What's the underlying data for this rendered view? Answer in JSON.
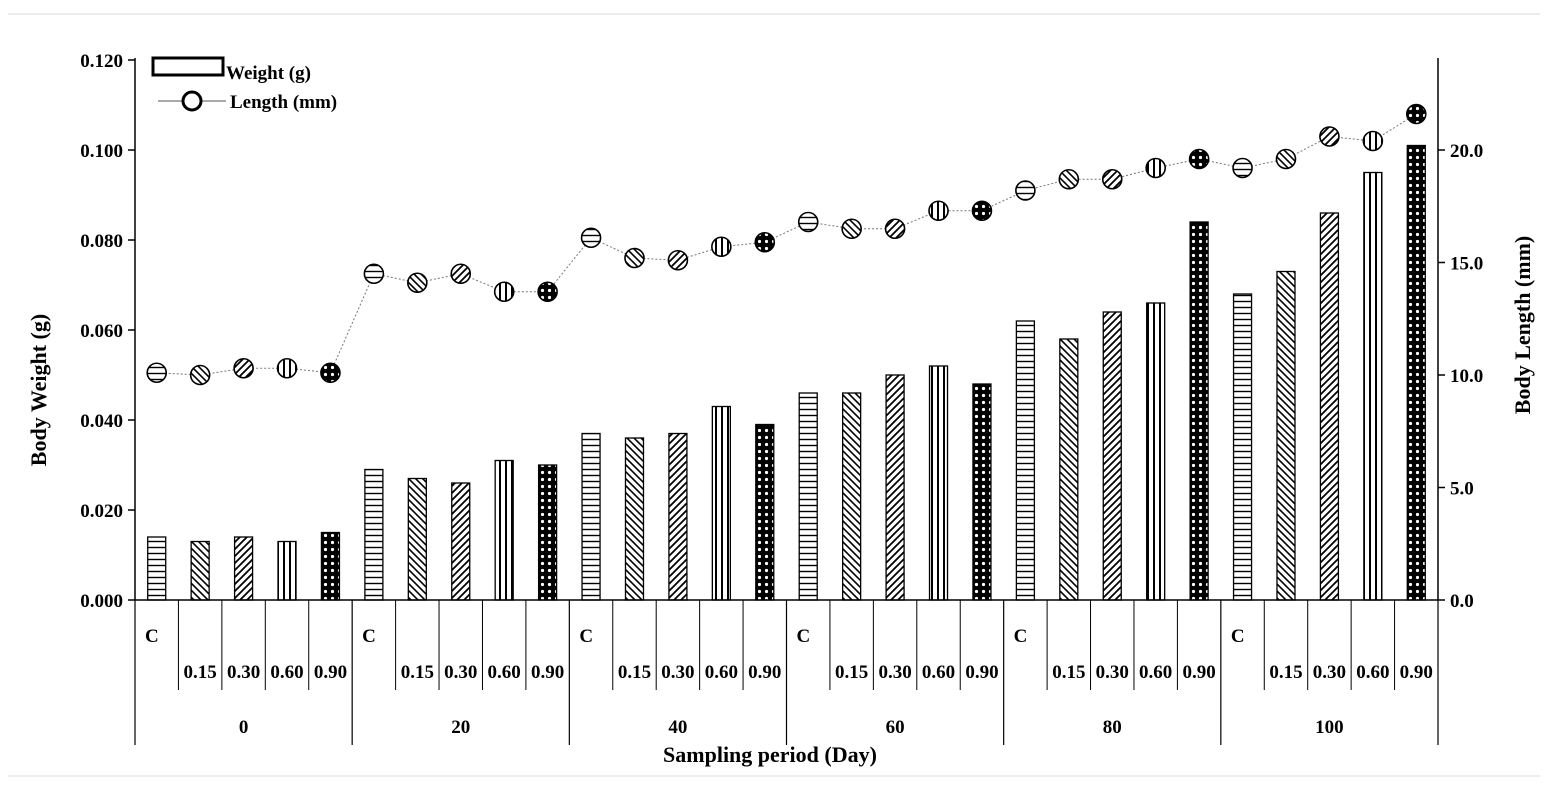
{
  "chart_data": {
    "type": "bar",
    "subtype": "grouped bar with secondary-axis line",
    "xlabel": "Sampling period  (Day)",
    "ylabel": "Body  Weight (g)",
    "y2label": "Body  Length (mm)",
    "ylim": [
      0,
      0.12
    ],
    "y2lim": [
      0,
      24
    ],
    "yticks": [
      "0.000",
      "0.020",
      "0.040",
      "0.060",
      "0.080",
      "0.100",
      "0.120"
    ],
    "y2ticks": [
      "0.0",
      "5.0",
      "10.0",
      "15.0",
      "20.0"
    ],
    "groups": [
      "0",
      "20",
      "40",
      "60",
      "80",
      "100"
    ],
    "treatments": [
      "C",
      "0.15",
      "0.30",
      "0.60",
      "0.90"
    ],
    "legend": {
      "position": "top-left",
      "weight_label": "Weight (g)",
      "length_label": "Length (mm)"
    },
    "series": [
      {
        "name": "Weight (g)",
        "type": "bar",
        "axis": "left",
        "values": [
          0.014,
          0.013,
          0.014,
          0.013,
          0.015,
          0.029,
          0.027,
          0.026,
          0.031,
          0.03,
          0.037,
          0.036,
          0.037,
          0.043,
          0.039,
          0.046,
          0.046,
          0.05,
          0.052,
          0.048,
          0.062,
          0.058,
          0.064,
          0.066,
          0.084,
          0.068,
          0.073,
          0.086,
          0.095,
          0.101
        ]
      },
      {
        "name": "Length (mm)",
        "type": "line",
        "axis": "right",
        "values": [
          10.1,
          10.0,
          10.3,
          10.3,
          10.1,
          14.5,
          14.1,
          14.5,
          13.7,
          13.7,
          16.1,
          15.2,
          15.1,
          15.7,
          15.9,
          16.8,
          16.5,
          16.5,
          17.3,
          17.3,
          18.2,
          18.7,
          18.7,
          19.2,
          19.6,
          19.2,
          19.6,
          20.6,
          20.4,
          21.6
        ]
      }
    ],
    "patterns": [
      "hstripe",
      "diag-back",
      "diag-fwd",
      "vstripe",
      "dots"
    ],
    "grid": false
  }
}
